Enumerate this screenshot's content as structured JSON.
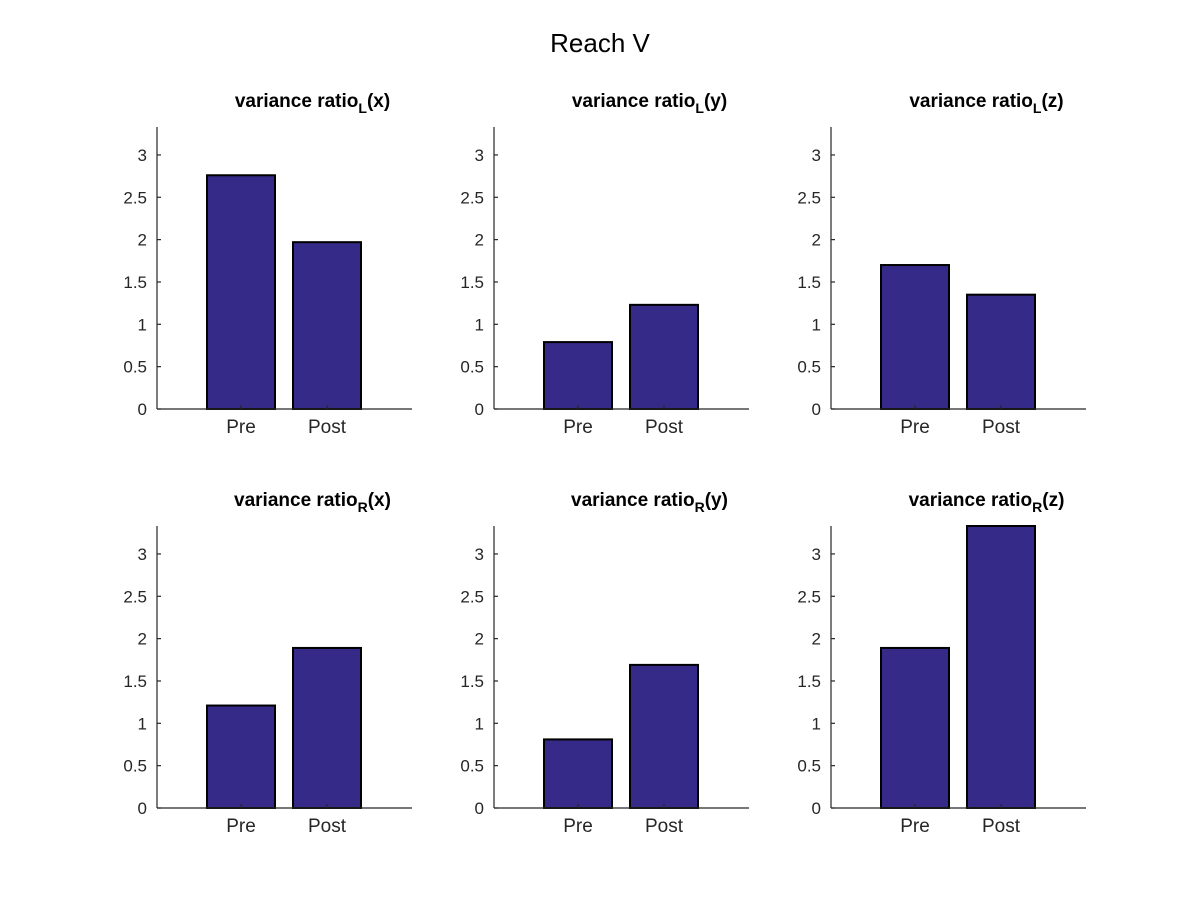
{
  "figure": {
    "title": "Reach V"
  },
  "colors": {
    "bar_fill": "#352a87",
    "bar_edge": "#000000",
    "axis": "#262626"
  },
  "chart_data": [
    {
      "type": "bar",
      "title": {
        "base": "variance ratio",
        "sub": "L",
        "suffix": "(x)"
      },
      "categories": [
        "Pre",
        "Post"
      ],
      "values": [
        2.76,
        1.97
      ],
      "yticks": [
        "0",
        "0.5",
        "1",
        "1.5",
        "2",
        "2.5",
        "3"
      ],
      "ylim": [
        0,
        3.33
      ],
      "xlabel": "",
      "ylabel": ""
    },
    {
      "type": "bar",
      "title": {
        "base": "variance ratio",
        "sub": "L",
        "suffix": "(y)"
      },
      "categories": [
        "Pre",
        "Post"
      ],
      "values": [
        0.79,
        1.23
      ],
      "yticks": [
        "0",
        "0.5",
        "1",
        "1.5",
        "2",
        "2.5",
        "3"
      ],
      "ylim": [
        0,
        3.33
      ],
      "xlabel": "",
      "ylabel": ""
    },
    {
      "type": "bar",
      "title": {
        "base": "variance ratio",
        "sub": "L",
        "suffix": "(z)"
      },
      "categories": [
        "Pre",
        "Post"
      ],
      "values": [
        1.7,
        1.35
      ],
      "yticks": [
        "0",
        "0.5",
        "1",
        "1.5",
        "2",
        "2.5",
        "3"
      ],
      "ylim": [
        0,
        3.33
      ],
      "xlabel": "",
      "ylabel": ""
    },
    {
      "type": "bar",
      "title": {
        "base": "variance ratio",
        "sub": "R",
        "suffix": "(x)"
      },
      "categories": [
        "Pre",
        "Post"
      ],
      "values": [
        1.21,
        1.89
      ],
      "yticks": [
        "0",
        "0.5",
        "1",
        "1.5",
        "2",
        "2.5",
        "3"
      ],
      "ylim": [
        0,
        3.33
      ],
      "xlabel": "",
      "ylabel": ""
    },
    {
      "type": "bar",
      "title": {
        "base": "variance ratio",
        "sub": "R",
        "suffix": "(y)"
      },
      "categories": [
        "Pre",
        "Post"
      ],
      "values": [
        0.81,
        1.69
      ],
      "yticks": [
        "0",
        "0.5",
        "1",
        "1.5",
        "2",
        "2.5",
        "3"
      ],
      "ylim": [
        0,
        3.33
      ],
      "xlabel": "",
      "ylabel": ""
    },
    {
      "type": "bar",
      "title": {
        "base": "variance ratio",
        "sub": "R",
        "suffix": "(z)"
      },
      "categories": [
        "Pre",
        "Post"
      ],
      "values": [
        1.89,
        3.33
      ],
      "yticks": [
        "0",
        "0.5",
        "1",
        "1.5",
        "2",
        "2.5",
        "3"
      ],
      "ylim": [
        0,
        3.33
      ],
      "xlabel": "",
      "ylabel": ""
    }
  ]
}
